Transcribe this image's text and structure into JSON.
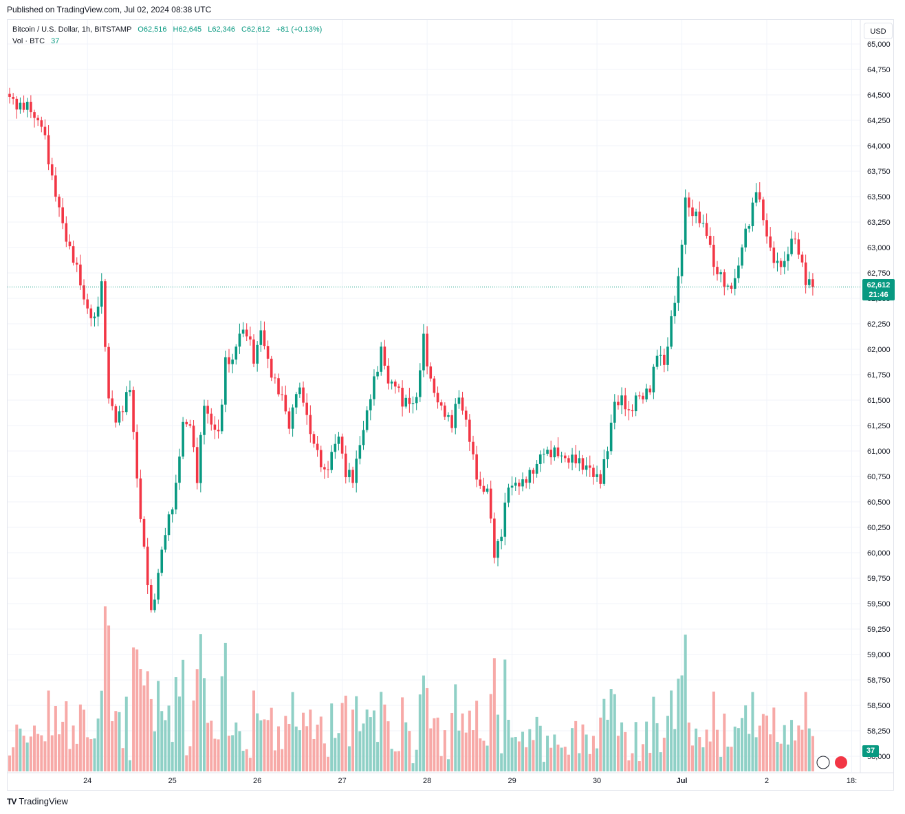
{
  "published": "Published on TradingView.com, Jul 02, 2024 08:38 UTC",
  "legend": {
    "symbol": "Bitcoin / U.S. Dollar, 1h, BITSTAMP",
    "open": "O62,516",
    "high": "H62,645",
    "low": "L62,346",
    "close": "C62,612",
    "change": "+81 (+0.13%)",
    "vol_label": "Vol · BTC",
    "vol_value": "37"
  },
  "currency": "USD",
  "last_price_label": "62,612",
  "countdown": "21:46",
  "volume_tag": "37",
  "logo_text": "TradingView",
  "colors": {
    "up": "#089981",
    "down": "#f23645",
    "vol_up": "#8fd0c6",
    "vol_down": "#f7a9a7",
    "grid": "#f0f3fa"
  },
  "chart_data": {
    "type": "candlestick",
    "timeframe": "1h",
    "x_ticks": [
      "24",
      "25",
      "26",
      "27",
      "28",
      "29",
      "30",
      "Jul",
      "2",
      "18:"
    ],
    "y_ticks": [
      "58,000",
      "58,250",
      "58,500",
      "58,750",
      "59,000",
      "59,250",
      "59,500",
      "59,750",
      "60,000",
      "60,250",
      "60,500",
      "60,750",
      "61,000",
      "61,250",
      "61,500",
      "61,750",
      "62,000",
      "62,250",
      "62,500",
      "62,750",
      "63,000",
      "63,250",
      "63,500",
      "63,750",
      "64,000",
      "64,250",
      "64,500",
      "64,750",
      "65,000"
    ],
    "ylim": [
      58000,
      65000
    ],
    "last_price": 62612,
    "close_path": [
      [
        0,
        64450
      ],
      [
        6,
        64350
      ],
      [
        9,
        64200
      ],
      [
        12,
        63700
      ],
      [
        15,
        63200
      ],
      [
        18,
        62900
      ],
      [
        21,
        62500
      ],
      [
        24,
        62250
      ],
      [
        26,
        62650
      ],
      [
        28,
        61500
      ],
      [
        30,
        61300
      ],
      [
        32,
        61450
      ],
      [
        34,
        61600
      ],
      [
        36,
        60750
      ],
      [
        38,
        60000
      ],
      [
        40,
        59400
      ],
      [
        41,
        59600
      ],
      [
        43,
        60000
      ],
      [
        45,
        60350
      ],
      [
        47,
        60650
      ],
      [
        49,
        61250
      ],
      [
        51,
        61300
      ],
      [
        53,
        60700
      ],
      [
        55,
        61500
      ],
      [
        57,
        61250
      ],
      [
        59,
        61150
      ],
      [
        61,
        61900
      ],
      [
        63,
        61850
      ],
      [
        65,
        62200
      ],
      [
        67,
        62150
      ],
      [
        69,
        61900
      ],
      [
        71,
        62200
      ],
      [
        73,
        61850
      ],
      [
        75,
        61700
      ],
      [
        77,
        61500
      ],
      [
        79,
        61250
      ],
      [
        81,
        61600
      ],
      [
        83,
        61500
      ],
      [
        85,
        61200
      ],
      [
        87,
        60950
      ],
      [
        89,
        60800
      ],
      [
        91,
        60950
      ],
      [
        93,
        61150
      ],
      [
        95,
        60800
      ],
      [
        97,
        60700
      ],
      [
        99,
        61100
      ],
      [
        101,
        61350
      ],
      [
        103,
        61700
      ],
      [
        105,
        62000
      ],
      [
        107,
        61650
      ],
      [
        109,
        61700
      ],
      [
        111,
        61450
      ],
      [
        113,
        61500
      ],
      [
        115,
        61500
      ],
      [
        117,
        62100
      ],
      [
        119,
        61700
      ],
      [
        121,
        61450
      ],
      [
        123,
        61400
      ],
      [
        125,
        61250
      ],
      [
        127,
        61550
      ],
      [
        129,
        61300
      ],
      [
        131,
        60900
      ],
      [
        133,
        60650
      ],
      [
        135,
        60600
      ],
      [
        137,
        60000
      ],
      [
        139,
        60200
      ],
      [
        141,
        60650
      ],
      [
        143,
        60700
      ],
      [
        145,
        60650
      ],
      [
        147,
        60800
      ],
      [
        149,
        60850
      ],
      [
        151,
        61000
      ],
      [
        153,
        61000
      ],
      [
        155,
        60950
      ],
      [
        157,
        60950
      ],
      [
        159,
        60900
      ],
      [
        161,
        60900
      ],
      [
        163,
        60850
      ],
      [
        165,
        60750
      ],
      [
        167,
        60750
      ],
      [
        169,
        61000
      ],
      [
        171,
        61500
      ],
      [
        173,
        61500
      ],
      [
        175,
        61350
      ],
      [
        177,
        61550
      ],
      [
        179,
        61500
      ],
      [
        181,
        61650
      ],
      [
        183,
        61950
      ],
      [
        185,
        61850
      ],
      [
        187,
        62300
      ],
      [
        189,
        62650
      ],
      [
        191,
        63500
      ],
      [
        193,
        63300
      ],
      [
        195,
        63300
      ],
      [
        197,
        63150
      ],
      [
        199,
        62800
      ],
      [
        201,
        62750
      ],
      [
        203,
        62550
      ],
      [
        205,
        62700
      ],
      [
        207,
        63000
      ],
      [
        209,
        63250
      ],
      [
        211,
        63600
      ],
      [
        213,
        63250
      ],
      [
        215,
        63000
      ],
      [
        217,
        62800
      ],
      [
        219,
        62850
      ],
      [
        221,
        63100
      ],
      [
        223,
        62950
      ],
      [
        225,
        62700
      ],
      [
        227,
        62612
      ]
    ]
  }
}
